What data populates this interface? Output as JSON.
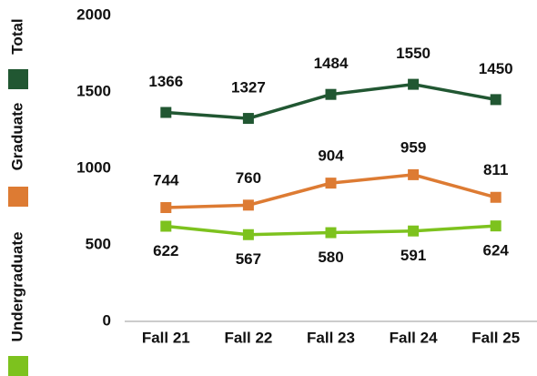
{
  "chart_data": {
    "type": "line",
    "categories": [
      "Fall 21",
      "Fall 22",
      "Fall 23",
      "Fall 24",
      "Fall 25"
    ],
    "series": [
      {
        "name": "Total",
        "color": "#215732",
        "values": [
          1366,
          1327,
          1484,
          1550,
          1450
        ]
      },
      {
        "name": "Graduate",
        "color": "#dd7b33",
        "values": [
          744,
          760,
          904,
          959,
          811
        ]
      },
      {
        "name": "Undergraduate",
        "color": "#7dc21e",
        "values": [
          622,
          567,
          580,
          591,
          624
        ]
      }
    ],
    "ylim": [
      0,
      2000
    ],
    "yticks": [
      0,
      500,
      1000,
      1500,
      2000
    ],
    "legend": "left",
    "grid": false
  }
}
